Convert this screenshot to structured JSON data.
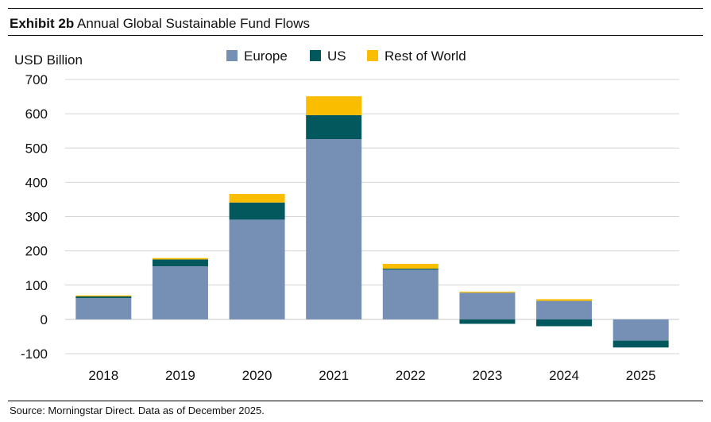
{
  "exhibit_label": "Exhibit 2b",
  "title_text": "Annual Global Sustainable Fund Flows",
  "source_note": "Source: Morningstar Direct. Data as of December 2025.",
  "colors": {
    "europe": "#7690b5",
    "us": "#02585d",
    "row": "#fbbd00",
    "grid": "#d4d4d4"
  },
  "chart_data": {
    "type": "bar",
    "stacked": true,
    "title": "Annual Global Sustainable Fund Flows",
    "ylabel": "USD Billion",
    "xlabel": "",
    "ylim": [
      -100,
      700
    ],
    "yticks": [
      700,
      600,
      500,
      400,
      300,
      200,
      100,
      0,
      -100
    ],
    "grid": true,
    "legend_position": "top",
    "categories": [
      "2018",
      "2019",
      "2020",
      "2021",
      "2022",
      "2023",
      "2024",
      "2025"
    ],
    "series": [
      {
        "name": "Europe",
        "color": "#7690b5",
        "values": [
          62,
          155,
          291,
          526,
          145,
          78,
          54,
          -62
        ]
      },
      {
        "name": "US",
        "color": "#02585d",
        "values": [
          5,
          20,
          50,
          70,
          3,
          -13,
          -20,
          -20
        ]
      },
      {
        "name": "Rest of World",
        "color": "#fbbd00",
        "values": [
          3,
          4,
          25,
          55,
          14,
          3,
          5,
          0
        ]
      }
    ]
  }
}
